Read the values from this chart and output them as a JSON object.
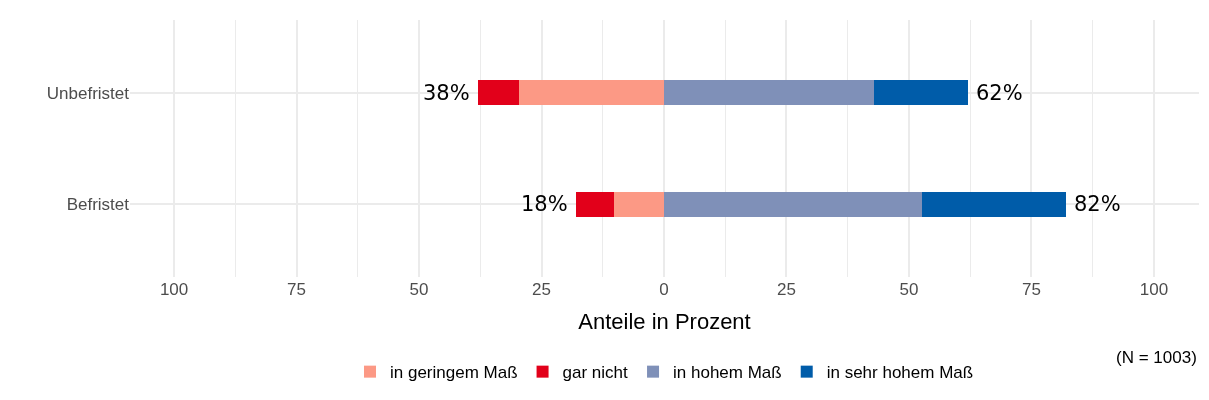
{
  "chart_data": {
    "type": "bar",
    "orientation": "horizontal",
    "stacked": true,
    "xlabel": "Anteile in Prozent",
    "categories": [
      "Unbefristet",
      "Befristet"
    ],
    "series": [
      {
        "name": "in geringem Maß",
        "color": "#fc9985",
        "values": [
          -29.6,
          -10.2
        ]
      },
      {
        "name": "gar nicht",
        "color": "#e2001a",
        "values": [
          -8.4,
          -7.8
        ]
      },
      {
        "name": "in hohem Maß",
        "color": "#7f90b8",
        "values": [
          42.8,
          52.6
        ]
      },
      {
        "name": "in sehr hohem Maß",
        "color": "#005ca9",
        "values": [
          19.2,
          29.4
        ]
      }
    ],
    "xlim": [
      -109,
      109.2
    ],
    "xticks": [
      {
        "value": -100,
        "label": "100"
      },
      {
        "value": -75,
        "label": "75"
      },
      {
        "value": -50,
        "label": "50"
      },
      {
        "value": -25,
        "label": "25"
      },
      0,
      25,
      50,
      75,
      100
    ],
    "annotations": [
      {
        "text": "38%",
        "x": -38,
        "y": "Unbefristet"
      },
      {
        "text": "62%",
        "x": 62,
        "y": "Unbefristet"
      },
      {
        "text": "18%",
        "x": -18,
        "y": "Befristet"
      },
      {
        "text": "82%",
        "x": 82,
        "y": "Befristet"
      },
      "(N = 1003)"
    ],
    "grid": true,
    "legend": "bottom"
  }
}
